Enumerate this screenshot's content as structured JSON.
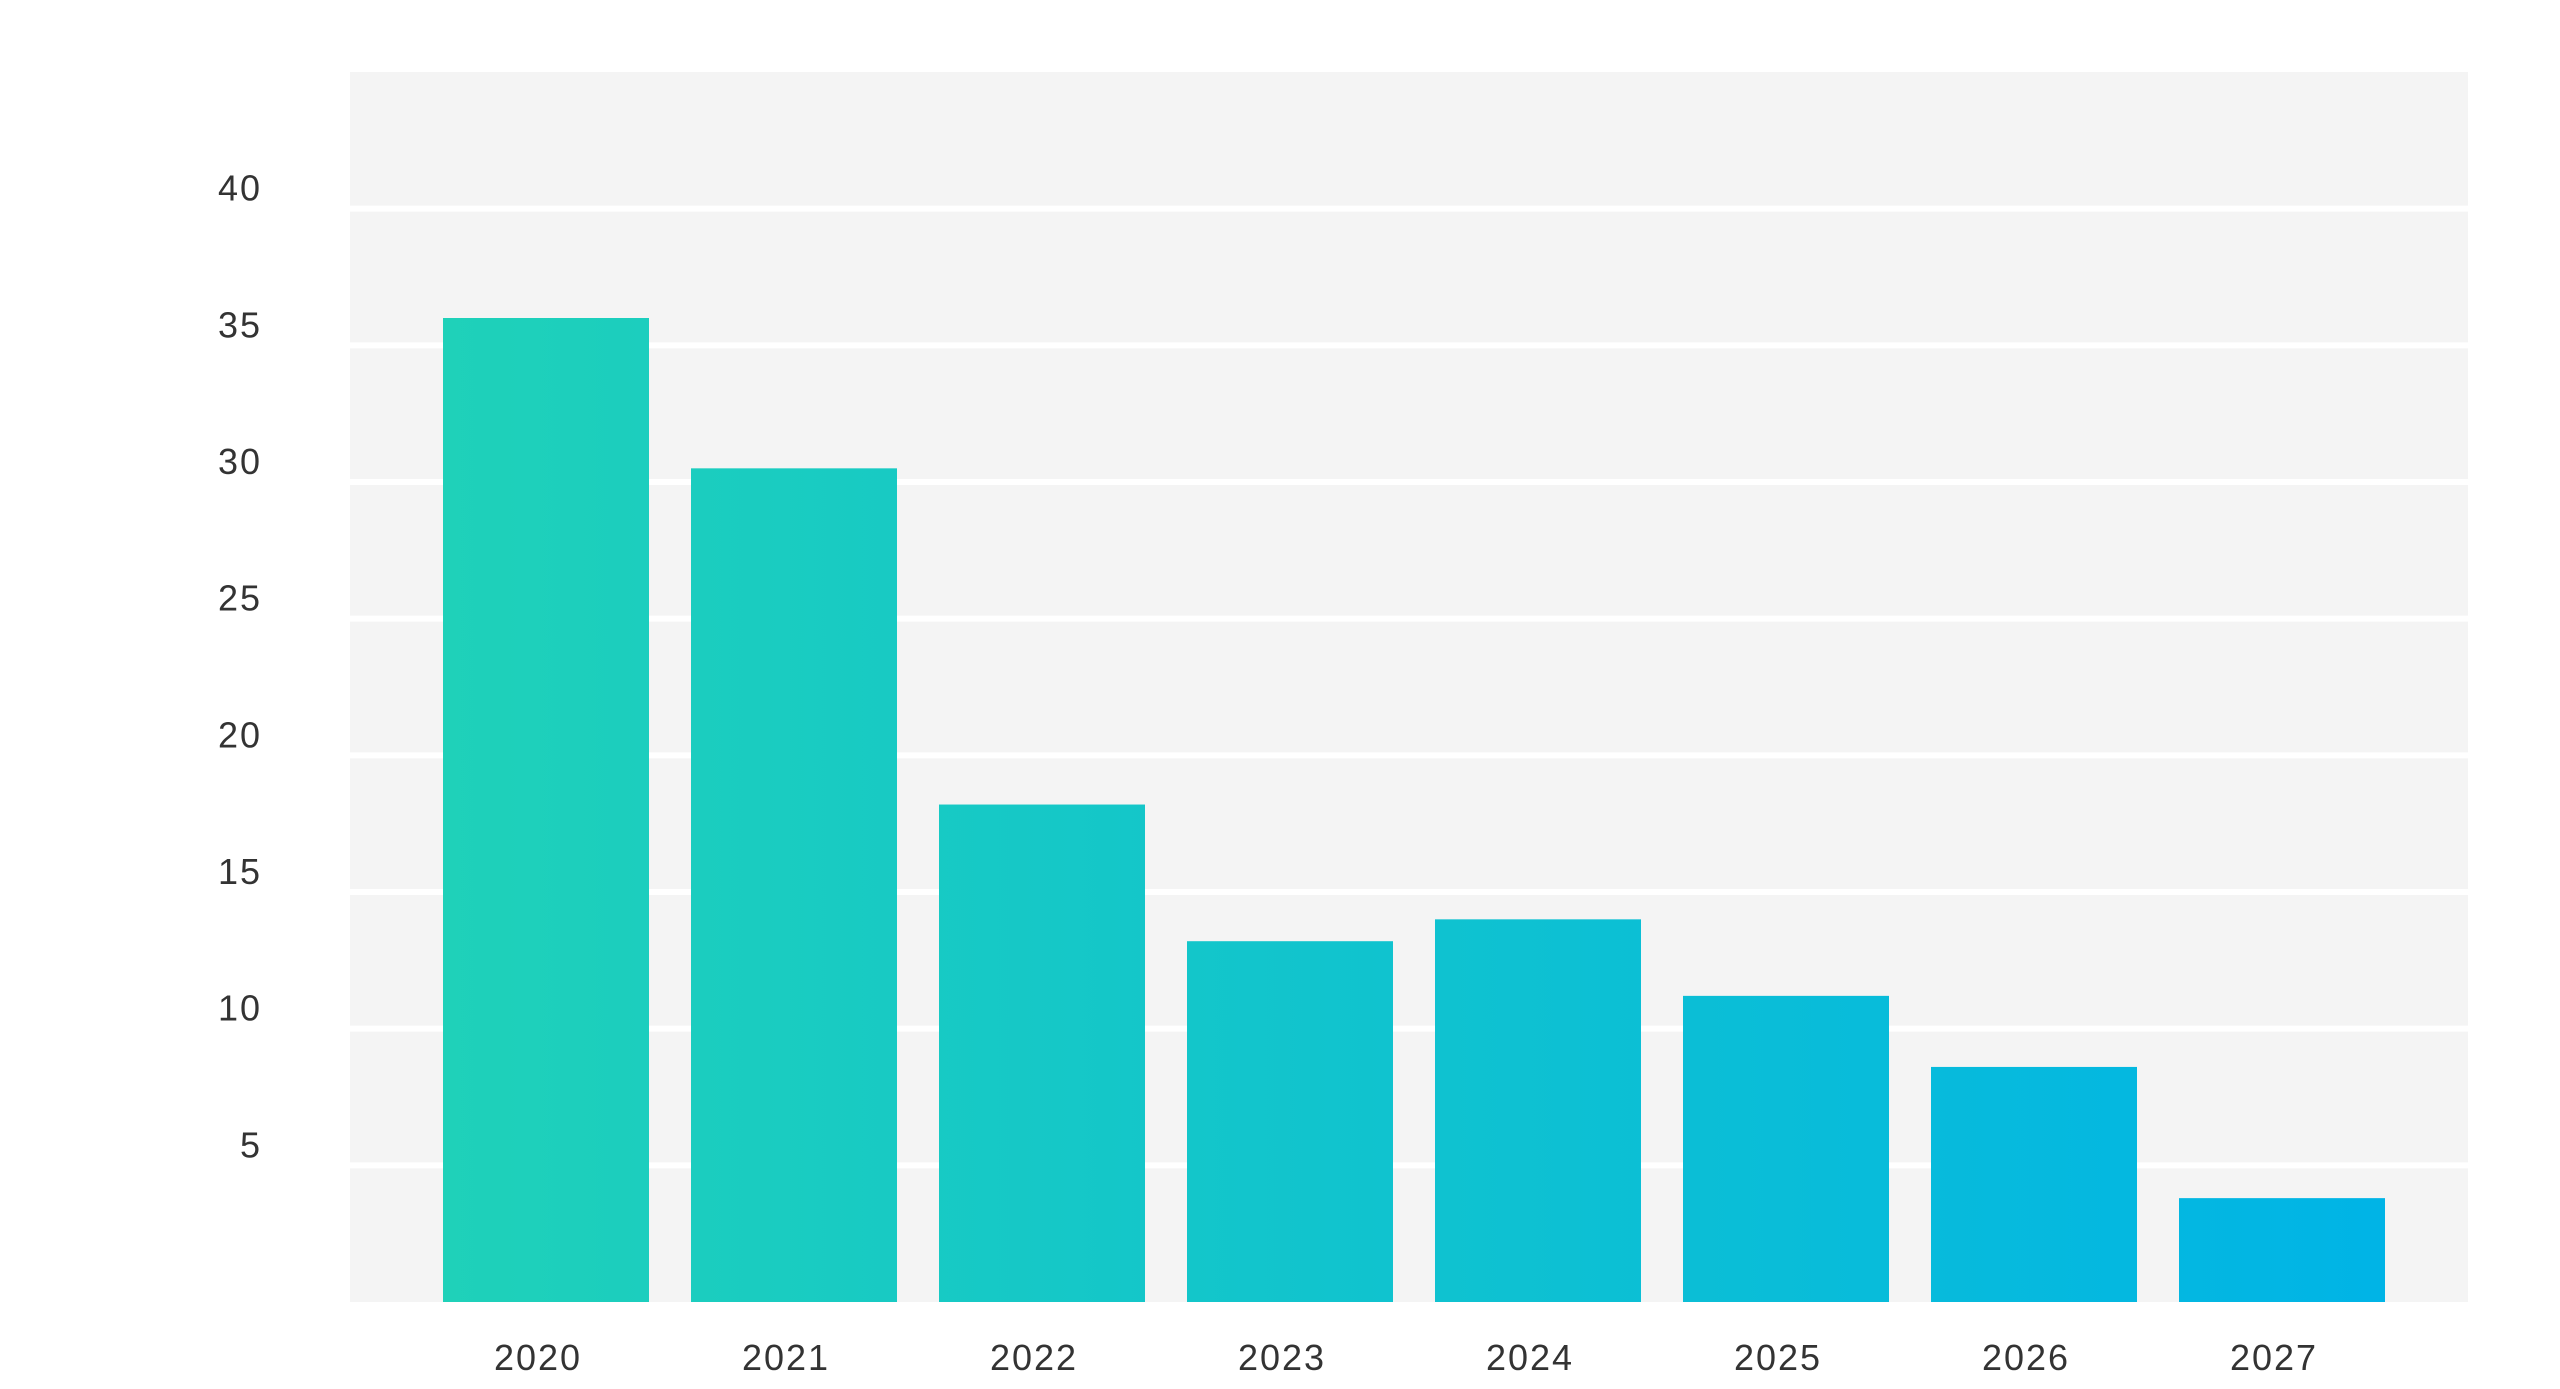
{
  "chart_data": {
    "type": "bar",
    "title": "",
    "xlabel": "",
    "ylabel": "",
    "categories": [
      "2020",
      "2021",
      "2022",
      "2023",
      "2024",
      "2025",
      "2026",
      "2027"
    ],
    "values": [
      36,
      30.5,
      18.2,
      13.2,
      14,
      11.2,
      8.6,
      3.8
    ],
    "ylim": [
      0,
      45
    ],
    "yticks": [
      5,
      10,
      15,
      20,
      25,
      30,
      35,
      40
    ],
    "grid": true,
    "legend": "none",
    "colors": {
      "plot_bg": "#f4f4f4",
      "gridline": "#ffffff",
      "bar_start": "#1fd1b9",
      "bar_end": "#00b4e6",
      "tick_text": "#333333"
    }
  }
}
